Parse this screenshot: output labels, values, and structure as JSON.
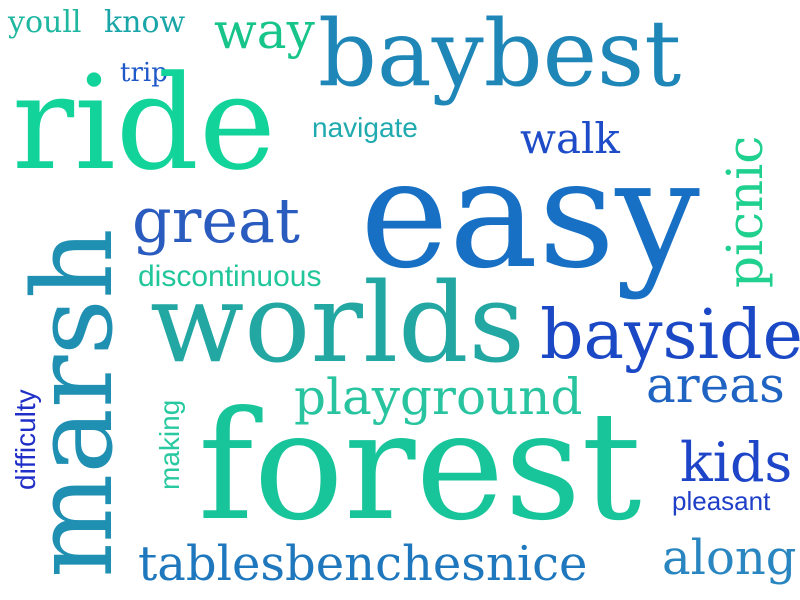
{
  "words": {
    "youll": {
      "text": "youll",
      "color": "#1fb7a0"
    },
    "know": {
      "text": "know",
      "color": "#1aa6a8"
    },
    "way": {
      "text": "way",
      "color": "#17c48a"
    },
    "baybest": {
      "text": "baybest",
      "color": "#1f86b8"
    },
    "trip": {
      "text": "trip",
      "color": "#1f58c8"
    },
    "ride": {
      "text": "ride",
      "color": "#12d49a"
    },
    "navigate": {
      "text": "navigate",
      "color": "#1faab0"
    },
    "walk": {
      "text": "walk",
      "color": "#1e4cc8"
    },
    "picnic": {
      "text": "picnic",
      "color": "#20d08f"
    },
    "easy": {
      "text": "easy",
      "color": "#1870c4"
    },
    "great": {
      "text": "great",
      "color": "#2a5bbf"
    },
    "marsh": {
      "text": "marsh",
      "color": "#1f8fb2"
    },
    "discontinuous": {
      "text": "discontinuous",
      "color": "#21c69a"
    },
    "worlds": {
      "text": "worlds",
      "color": "#22a7a2"
    },
    "bayside": {
      "text": "bayside",
      "color": "#1b49c6"
    },
    "playground": {
      "text": "playground",
      "color": "#28c4a0"
    },
    "areas": {
      "text": "areas",
      "color": "#1f63c3"
    },
    "difficulty": {
      "text": "difficulty",
      "color": "#1f2fc8"
    },
    "making": {
      "text": "making",
      "color": "#28c9a0"
    },
    "forest": {
      "text": "forest",
      "color": "#18c59b"
    },
    "kids": {
      "text": "kids",
      "color": "#1e45c8"
    },
    "pleasant": {
      "text": "pleasant",
      "color": "#1f3fc8"
    },
    "along": {
      "text": "along",
      "color": "#2a86c0"
    },
    "tablesbenchesnice": {
      "text": "tablesbenchesnice",
      "color": "#1f78bd"
    }
  }
}
